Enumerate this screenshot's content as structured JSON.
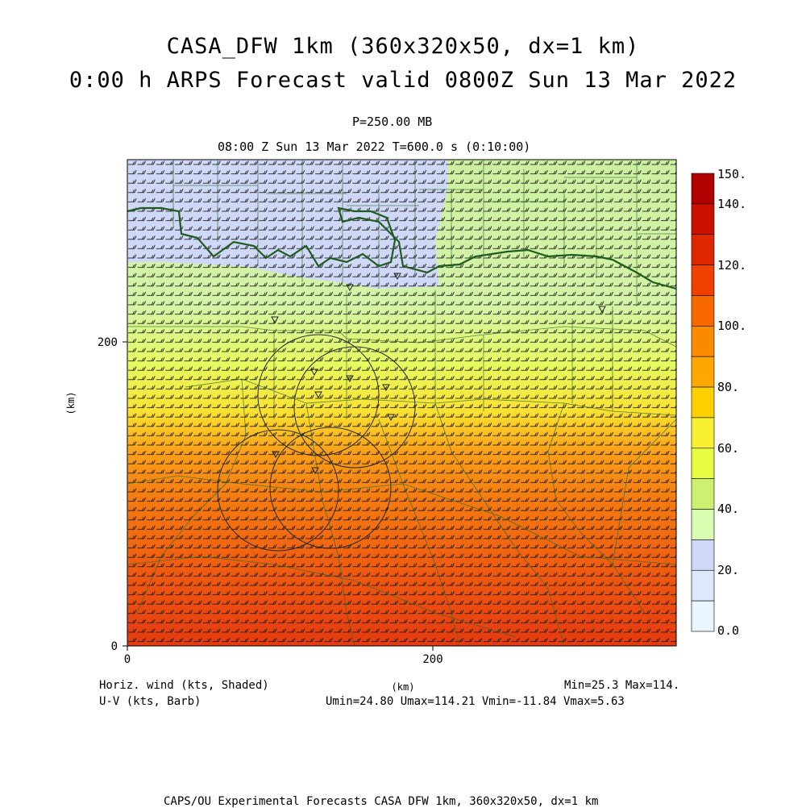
{
  "title_line1": "CASA_DFW 1km (360x320x50, dx=1 km)",
  "title_line2": "0:00 h ARPS Forecast valid 0800Z Sun 13 Mar 2022",
  "pressure_label": "P=250.00 MB",
  "time_label": "08:00 Z Sun 13 Mar 2022   T=600.0 s (0:10:00)",
  "axes": {
    "x_label": "(km)",
    "y_label": "(km)",
    "x_ticks": [
      "0",
      "200"
    ],
    "y_ticks": [
      "0",
      "200"
    ]
  },
  "colorbar": {
    "labels": [
      "150.",
      "140.",
      "120.",
      "100.",
      "80.",
      "60.",
      "40.",
      "20.",
      "0.0"
    ],
    "colors": [
      "#b00000",
      "#cc1000",
      "#e02800",
      "#f04000",
      "#f86800",
      "#fa8a00",
      "#fca800",
      "#ffd000",
      "#f8f030",
      "#e6fc40",
      "#ccf070",
      "#d8fcb0",
      "#d0d8f8",
      "#dce8fc",
      "#eaf6ff"
    ]
  },
  "legend": {
    "left_line1": "Horiz. wind (kts, Shaded)",
    "left_line2": "U-V (kts, Barb)",
    "right_line1": "Min=25.3 Max=114.",
    "right_line2": "Umin=24.80 Umax=114.21 Vmin=-11.84 Vmax=5.63"
  },
  "footer": "CAPS/OU Experimental Forecasts  CASA DFW 1km, 360x320x50, dx=1 km",
  "chart_data": {
    "type": "heatmap",
    "field": "Horizontal wind speed (kts)",
    "value_range": [
      25.3,
      114
    ],
    "x_range_km": [
      0,
      360
    ],
    "y_range_km": [
      0,
      320
    ],
    "color_range": [
      0,
      150
    ]
  }
}
